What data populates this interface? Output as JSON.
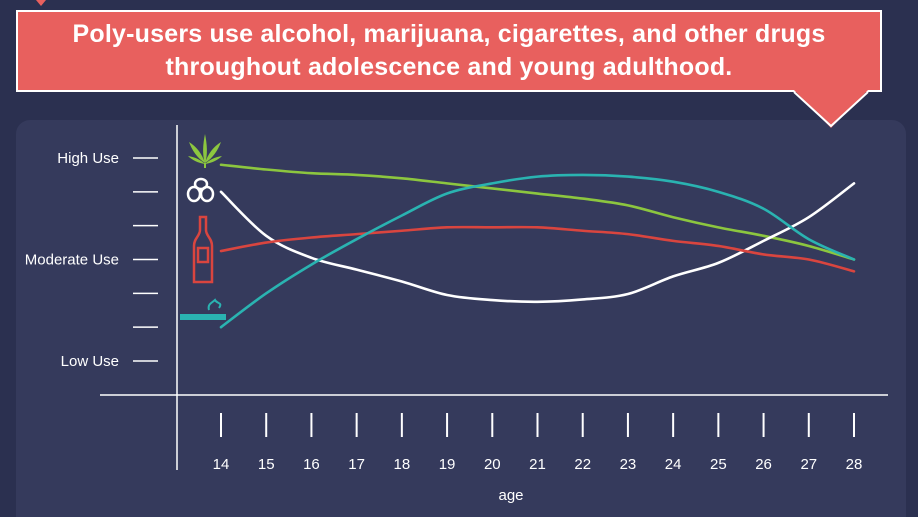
{
  "banner": {
    "line1": "Poly-users use alcohol, marijuana, cigarettes, and other drugs",
    "line2": "throughout adolescence and young adulthood."
  },
  "chart_data": {
    "type": "line",
    "xlabel": "age",
    "x": [
      14,
      15,
      16,
      17,
      18,
      19,
      20,
      21,
      22,
      23,
      24,
      25,
      26,
      27,
      28
    ],
    "ylim": [
      0,
      6
    ],
    "y_ticks": [
      {
        "value": 6,
        "label": "High Use"
      },
      {
        "value": 5,
        "label": ""
      },
      {
        "value": 4,
        "label": ""
      },
      {
        "value": 3,
        "label": "Moderate Use"
      },
      {
        "value": 2,
        "label": ""
      },
      {
        "value": 1,
        "label": ""
      },
      {
        "value": 0,
        "label": "Low Use"
      }
    ],
    "series": [
      {
        "icon": "marijuana-leaf-icon",
        "color": "#8cc63f",
        "values": [
          5.8,
          5.66,
          5.55,
          5.5,
          5.4,
          5.25,
          5.1,
          4.95,
          4.8,
          4.6,
          4.25,
          3.95,
          3.7,
          3.4,
          3.0
        ]
      },
      {
        "icon": "pills-icon",
        "color": "#ffffff",
        "values": [
          5.0,
          3.7,
          3.05,
          2.7,
          2.35,
          1.95,
          1.8,
          1.75,
          1.82,
          1.98,
          2.5,
          2.9,
          3.55,
          4.25,
          5.25
        ]
      },
      {
        "icon": "beer-bottle-icon",
        "color": "#d9453f",
        "values": [
          3.25,
          3.5,
          3.65,
          3.75,
          3.85,
          3.95,
          3.95,
          3.95,
          3.85,
          3.75,
          3.55,
          3.4,
          3.15,
          3.0,
          2.65
        ]
      },
      {
        "icon": "cigarette-icon",
        "color": "#2ab3b1",
        "values": [
          1.0,
          2.0,
          2.85,
          3.6,
          4.3,
          4.95,
          5.25,
          5.45,
          5.5,
          5.45,
          5.3,
          5.0,
          4.5,
          3.6,
          3.0
        ]
      }
    ]
  }
}
